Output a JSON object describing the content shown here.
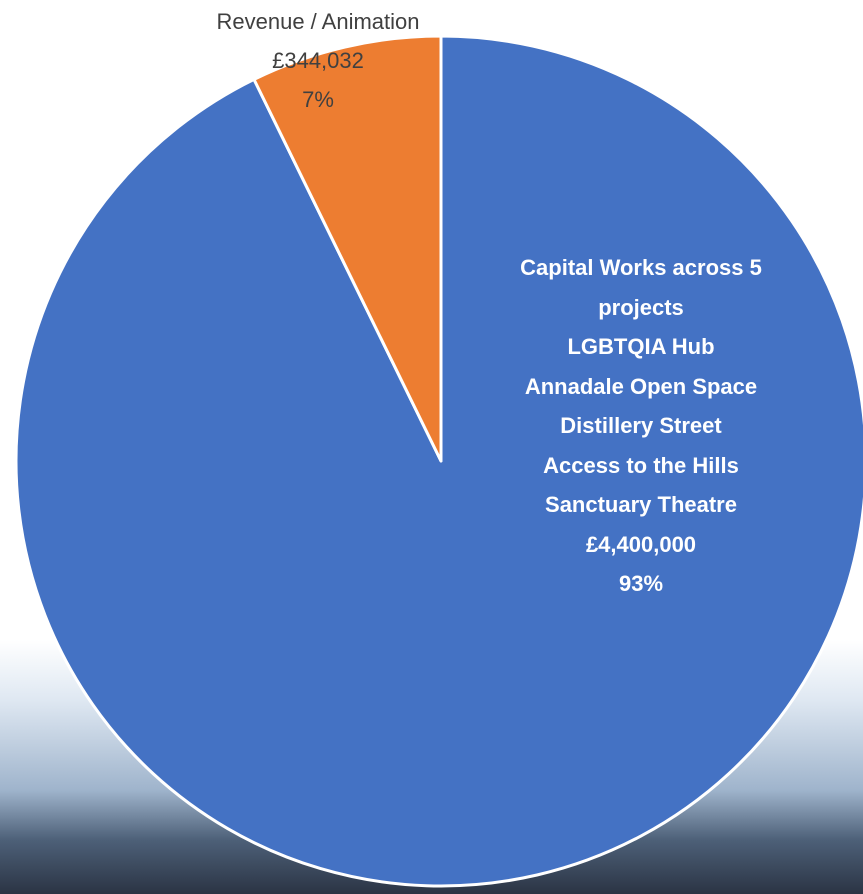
{
  "chart_data": {
    "type": "pie",
    "categories": [
      "Capital Works across 5 projects",
      "Revenue / Animation"
    ],
    "projects": [
      "LGBTQIA Hub",
      "Annadale Open Space",
      "Distillery Street",
      "Access to the Hills",
      "Sanctuary Theatre"
    ],
    "values": [
      4400000,
      344032
    ],
    "value_labels": [
      "£4,400,000",
      "£344,032"
    ],
    "percentages": [
      93,
      7
    ],
    "percentage_labels": [
      "93%",
      "7%"
    ],
    "colors": [
      "#4472c4",
      "#ed7d31"
    ]
  }
}
